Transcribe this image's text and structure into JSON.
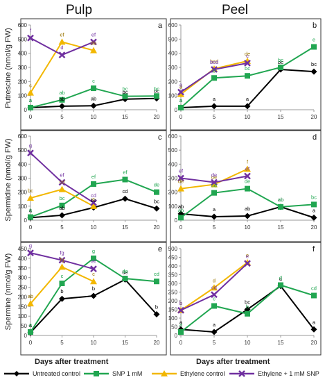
{
  "column_titles": [
    "Pulp",
    "Peel"
  ],
  "row_ylabels": [
    "Putrescine (nmol/g FW)",
    "Spermidine (nmol/g FW)",
    "Spermine (nmol/g FW)"
  ],
  "xlabel": "Days after treatment",
  "legend": [
    {
      "name": "Untreated control",
      "color": "#000000",
      "marker": "diamond"
    },
    {
      "name": "SNP 1 mM",
      "color": "#21A651",
      "marker": "square"
    },
    {
      "name": "Ethylene control",
      "color": "#F2B700",
      "marker": "triangle"
    },
    {
      "name": "Ethylene + 1 mM SNP",
      "color": "#7030A0",
      "marker": "x"
    }
  ],
  "chart_data": [
    {
      "panel": "a",
      "type": "line",
      "x": [
        0,
        5,
        10,
        15,
        20
      ],
      "ylim": [
        0,
        600
      ],
      "yticks": [
        0,
        100,
        200,
        300,
        400,
        500,
        600
      ],
      "xticks": [
        0,
        5,
        10,
        15,
        20
      ],
      "series": [
        {
          "name": "Untreated control",
          "values": [
            15,
            25,
            28,
            75,
            80
          ],
          "labels": [
            "a",
            "ab",
            "ab",
            "bc",
            "bc"
          ]
        },
        {
          "name": "SNP 1 mM",
          "values": [
            15,
            70,
            152,
            95,
            97
          ],
          "labels": [
            "a",
            "ab",
            "c",
            "bc",
            "bc"
          ]
        },
        {
          "name": "Ethylene control",
          "values": [
            120,
            480,
            420,
            null,
            null
          ],
          "labels": [
            "c",
            "ef",
            "de",
            null,
            null
          ]
        },
        {
          "name": "Ethylene + 1 mM SNP",
          "values": [
            508,
            388,
            480,
            null,
            null
          ],
          "labels": [
            "f",
            "d",
            "ef",
            null,
            null
          ]
        }
      ]
    },
    {
      "panel": "b",
      "type": "line",
      "x": [
        0,
        5,
        10,
        15,
        20
      ],
      "ylim": [
        0,
        600
      ],
      "yticks": [
        0,
        100,
        200,
        300,
        400,
        500,
        600
      ],
      "xticks": [
        0,
        5,
        10,
        15,
        20
      ],
      "series": [
        {
          "name": "Untreated control",
          "values": [
            15,
            25,
            25,
            285,
            270
          ],
          "labels": [
            "a",
            "a",
            "a",
            "bc",
            "bc"
          ]
        },
        {
          "name": "SNP 1 mM",
          "values": [
            15,
            225,
            240,
            300,
            445
          ],
          "labels": [
            "a",
            "b",
            "bc",
            "bc",
            "e"
          ]
        },
        {
          "name": "Ethylene control",
          "values": [
            110,
            290,
            345,
            null,
            null
          ],
          "labels": [
            "a",
            "bcd",
            "de",
            null,
            null
          ]
        },
        {
          "name": "Ethylene + 1 mM SNP",
          "values": [
            125,
            285,
            330,
            null,
            null
          ],
          "labels": [
            "a",
            "bcd",
            "c",
            null,
            null
          ]
        }
      ]
    },
    {
      "panel": "c",
      "type": "line",
      "x": [
        0,
        5,
        10,
        15,
        20
      ],
      "ylim": [
        0,
        600
      ],
      "yticks": [
        0,
        100,
        200,
        300,
        400,
        500,
        600
      ],
      "xticks": [
        0,
        5,
        10,
        15,
        20
      ],
      "series": [
        {
          "name": "Untreated control",
          "values": [
            18,
            35,
            90,
            153,
            83
          ],
          "labels": [
            "a",
            "ab",
            "bc",
            "cd",
            "bc"
          ]
        },
        {
          "name": "SNP 1 mM",
          "values": [
            22,
            105,
            258,
            290,
            200
          ],
          "labels": [
            "a",
            "bc",
            "ef",
            "ef",
            "de"
          ]
        },
        {
          "name": "Ethylene control",
          "values": [
            158,
            220,
            100,
            null,
            null
          ],
          "labels": [
            "bc",
            "cd",
            "c",
            null,
            null
          ]
        },
        {
          "name": "Ethylene + 1 mM SNP",
          "values": [
            480,
            270,
            125,
            null,
            null
          ],
          "labels": [
            "g",
            "ef",
            "cd",
            null,
            null
          ]
        }
      ]
    },
    {
      "panel": "d",
      "type": "line",
      "x": [
        0,
        5,
        10,
        15,
        20
      ],
      "ylim": [
        0,
        600
      ],
      "yticks": [
        0,
        100,
        200,
        300,
        400,
        500,
        600
      ],
      "xticks": [
        0,
        5,
        10,
        15,
        20
      ],
      "series": [
        {
          "name": "Untreated control",
          "values": [
            45,
            25,
            30,
            95,
            18
          ],
          "labels": [
            "ab",
            "a",
            "ab",
            "ab",
            "a"
          ]
        },
        {
          "name": "SNP 1 mM",
          "values": [
            18,
            195,
            225,
            95,
            112
          ],
          "labels": [
            "ab",
            "cd",
            "de",
            "ab",
            "bc"
          ]
        },
        {
          "name": "Ethylene control",
          "values": [
            225,
            255,
            365,
            null,
            null
          ],
          "labels": [
            "de",
            "de",
            "f",
            null,
            null
          ]
        },
        {
          "name": "Ethylene + 1 mM SNP",
          "values": [
            300,
            270,
            315,
            null,
            null
          ],
          "labels": [
            "ef",
            "de",
            "ef",
            null,
            null
          ]
        }
      ]
    },
    {
      "panel": "e",
      "type": "line",
      "x": [
        0,
        5,
        10,
        15,
        20
      ],
      "ylim": [
        0,
        450
      ],
      "yticks": [
        0,
        50,
        100,
        150,
        200,
        250,
        300,
        350,
        400,
        450
      ],
      "xticks": [
        0,
        5,
        10,
        15,
        20
      ],
      "series": [
        {
          "name": "Untreated control",
          "values": [
            15,
            190,
            205,
            290,
            110
          ],
          "labels": [
            "a",
            "b",
            "b",
            "de",
            "b"
          ]
        },
        {
          "name": "SNP 1 mM",
          "values": [
            18,
            270,
            400,
            295,
            280
          ],
          "labels": [
            "a",
            "c",
            "g",
            "de",
            "cd"
          ]
        },
        {
          "name": "Ethylene control",
          "values": [
            165,
            355,
            280,
            null,
            null
          ],
          "labels": [
            "ab",
            "fg",
            "c",
            null,
            null
          ]
        },
        {
          "name": "Ethylene + 1 mM SNP",
          "values": [
            428,
            390,
            345,
            null,
            null
          ],
          "labels": [
            "g",
            "fg",
            "ef",
            null,
            null
          ]
        }
      ]
    },
    {
      "panel": "f",
      "type": "line",
      "x": [
        0,
        5,
        10,
        15,
        20
      ],
      "ylim": [
        0,
        500
      ],
      "yticks": [
        0,
        50,
        100,
        150,
        200,
        250,
        300,
        350,
        400,
        450,
        500
      ],
      "xticks": [
        0,
        5,
        10,
        15,
        20
      ],
      "series": [
        {
          "name": "Untreated control",
          "values": [
            35,
            20,
            150,
            285,
            35
          ],
          "labels": [
            "a",
            "a",
            "bc",
            "d",
            "a"
          ]
        },
        {
          "name": "SNP 1 mM",
          "values": [
            20,
            170,
            125,
            290,
            230
          ],
          "labels": [
            "a",
            "c",
            "b",
            "d",
            "cd"
          ]
        },
        {
          "name": "Ethylene control",
          "values": [
            145,
            275,
            420,
            null,
            null
          ],
          "labels": [
            "b",
            "d",
            "e",
            null,
            null
          ]
        },
        {
          "name": "Ethylene + 1 mM SNP",
          "values": [
            145,
            235,
            415,
            null,
            null
          ],
          "labels": [
            "b",
            "cd",
            "e",
            null,
            null
          ]
        }
      ]
    }
  ]
}
